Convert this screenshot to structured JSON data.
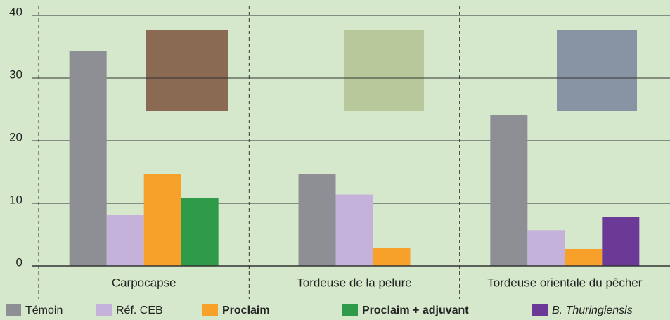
{
  "chart_data": {
    "type": "bar",
    "categories": [
      "Carpocapse",
      "Tordeuse de la pelure",
      "Tordeuse orientale du pêcher"
    ],
    "series": [
      {
        "name": "Témoin",
        "color": "#8e8f94",
        "values": [
          34.3,
          14.7,
          24.1
        ]
      },
      {
        "name": "Réf. CEB",
        "color": "#c5b2da",
        "values": [
          8.2,
          11.4,
          5.7
        ]
      },
      {
        "name": "Proclaim",
        "color": "#f7a02a",
        "values": [
          14.7,
          2.9,
          2.7
        ]
      },
      {
        "name": "Proclaim + adjuvant",
        "color": "#2f9a49",
        "values": [
          10.9,
          null,
          null
        ]
      },
      {
        "name": "B. Thuringiensis",
        "color": "#6a3a96",
        "values": [
          null,
          null,
          7.8
        ]
      }
    ],
    "ylim": [
      0,
      40
    ],
    "yticks": [
      0,
      10,
      20,
      30,
      40
    ],
    "grid": true
  }
}
